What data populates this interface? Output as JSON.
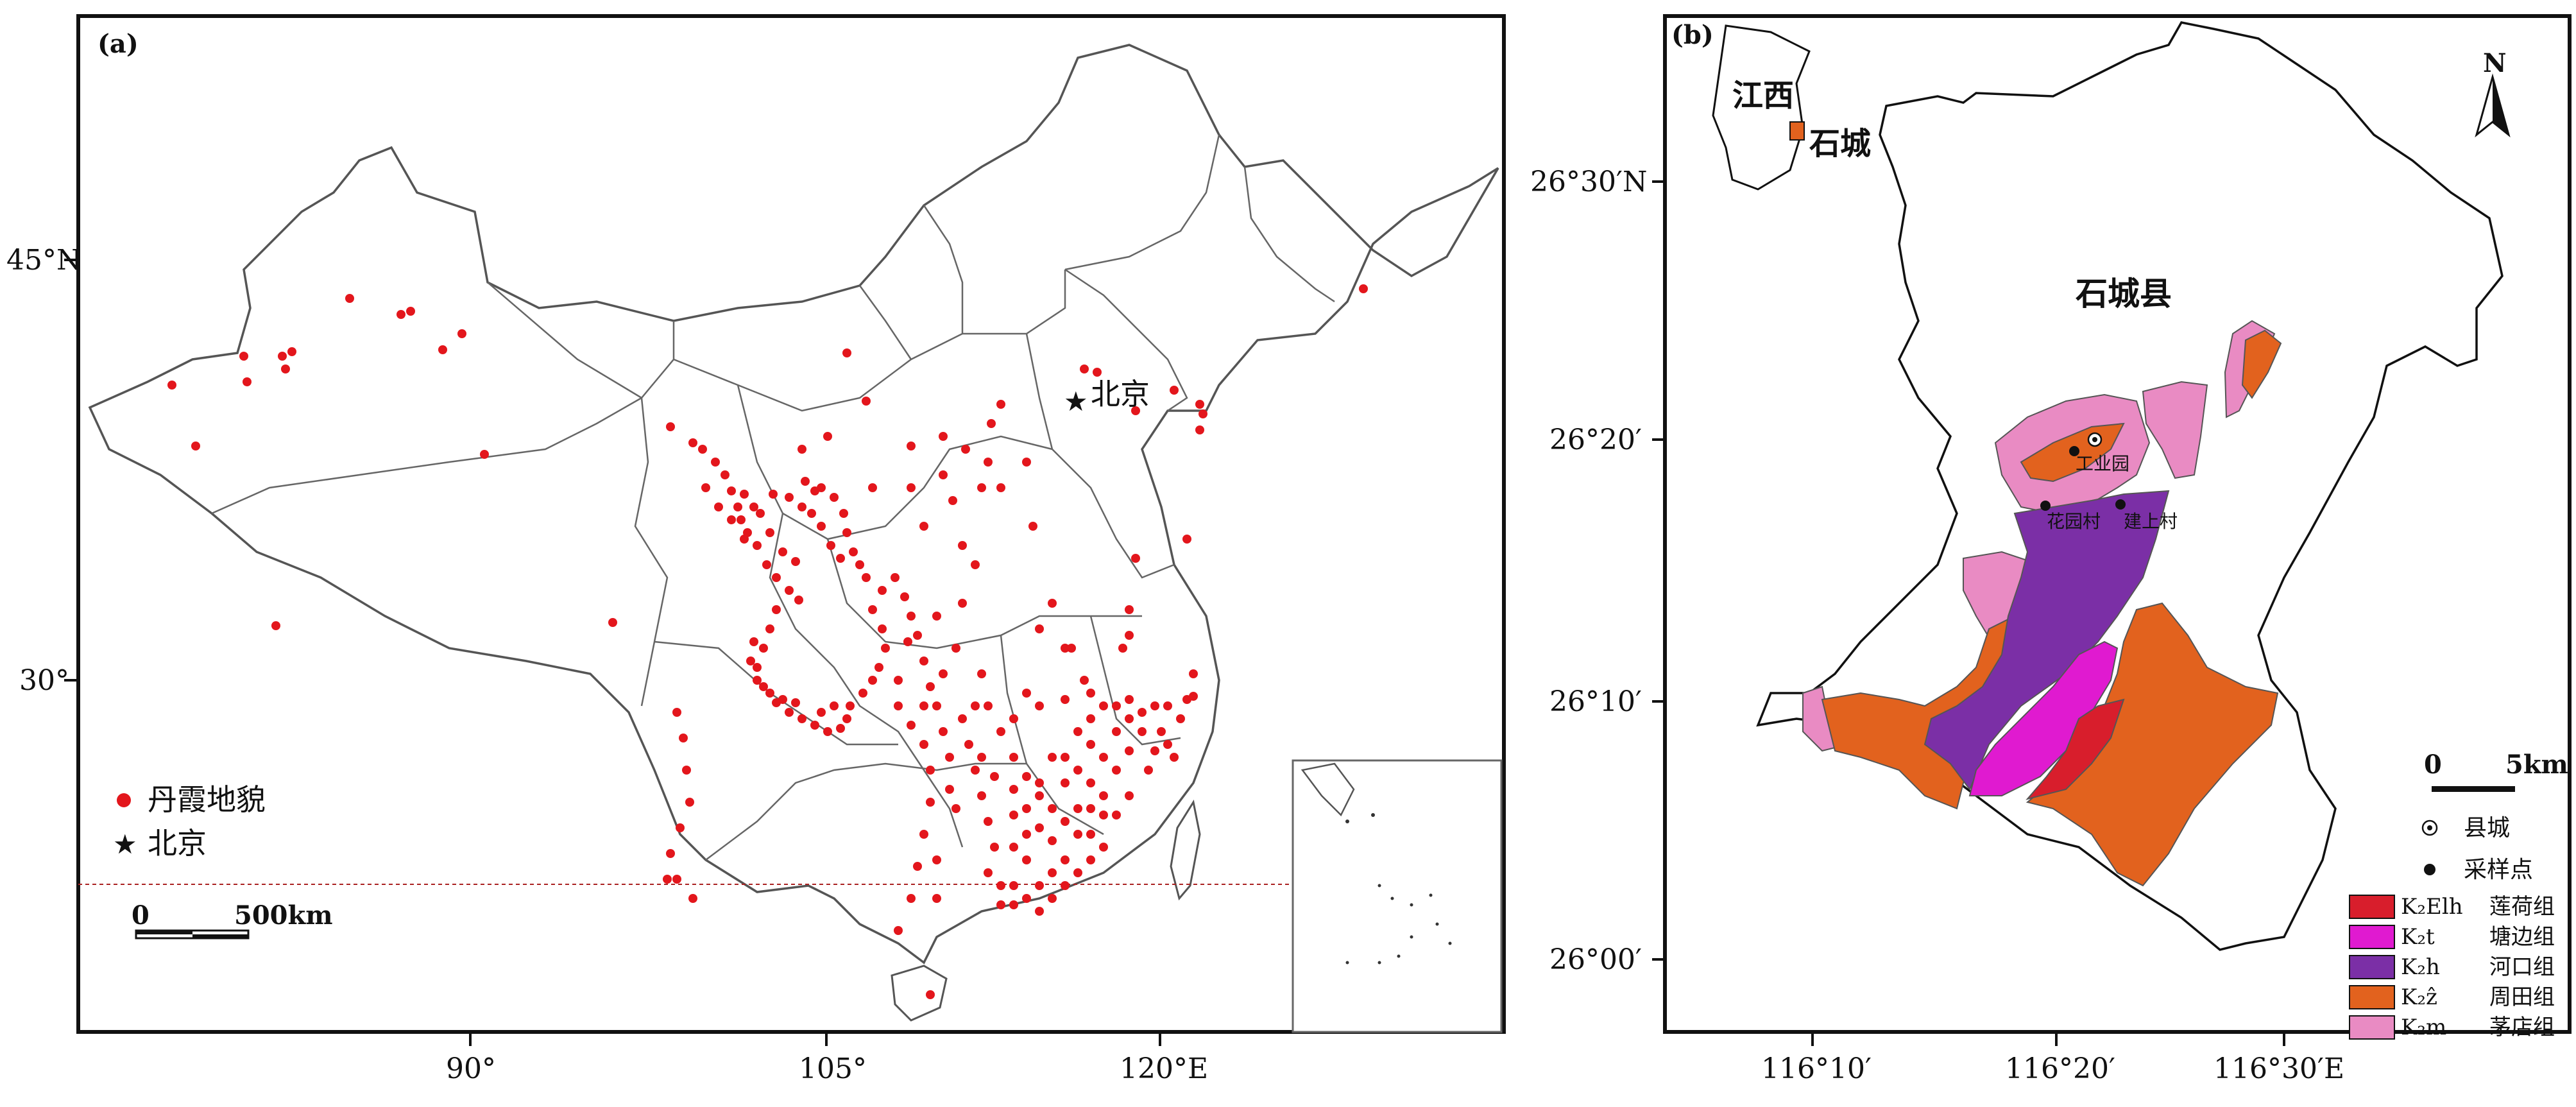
{
  "panel_a": {
    "tag": "(a)",
    "lat_labels": [
      "45°N",
      "30°"
    ],
    "lon_labels": [
      "90°",
      "105°",
      "120°E"
    ],
    "beijing_label": "北京",
    "legend": {
      "danxia": "丹霞地貌",
      "beijing": "北京"
    },
    "scale": {
      "zero": "0",
      "value": "500km"
    },
    "colors": {
      "danxia": "#e3161c",
      "border": "#555555"
    }
  },
  "panel_b": {
    "tag": "(b)",
    "inset_label_jiangxi": "江西",
    "inset_label_shicheng": "石城",
    "county_label": "石城县",
    "north": "N",
    "lat_labels": [
      "26°30′N",
      "26°20′",
      "26°10′",
      "26°00′"
    ],
    "lon_labels": [
      "116°10′",
      "116°20′",
      "116°30′E"
    ],
    "place_labels": {
      "gongyeyuan": "工业园",
      "huayuancun": "花园村",
      "jianshangcun": "建上村"
    },
    "scale": {
      "zero": "0",
      "value": "5km"
    },
    "legend": {
      "county_seat": "县城",
      "sample": "采样点",
      "units": [
        {
          "code": "K₂Elh",
          "name": "莲荷组",
          "color": "#d81e2c"
        },
        {
          "code": "K₂t",
          "name": "塘边组",
          "color": "#e01ad0"
        },
        {
          "code": "K₂h",
          "name": "河口组",
          "color": "#7b2fa6"
        },
        {
          "code": "K₂ẑ",
          "name": "周田组",
          "color": "#e2621e"
        },
        {
          "code": "K₂m",
          "name": "茅店组",
          "color": "#e98bc3"
        }
      ]
    }
  }
}
